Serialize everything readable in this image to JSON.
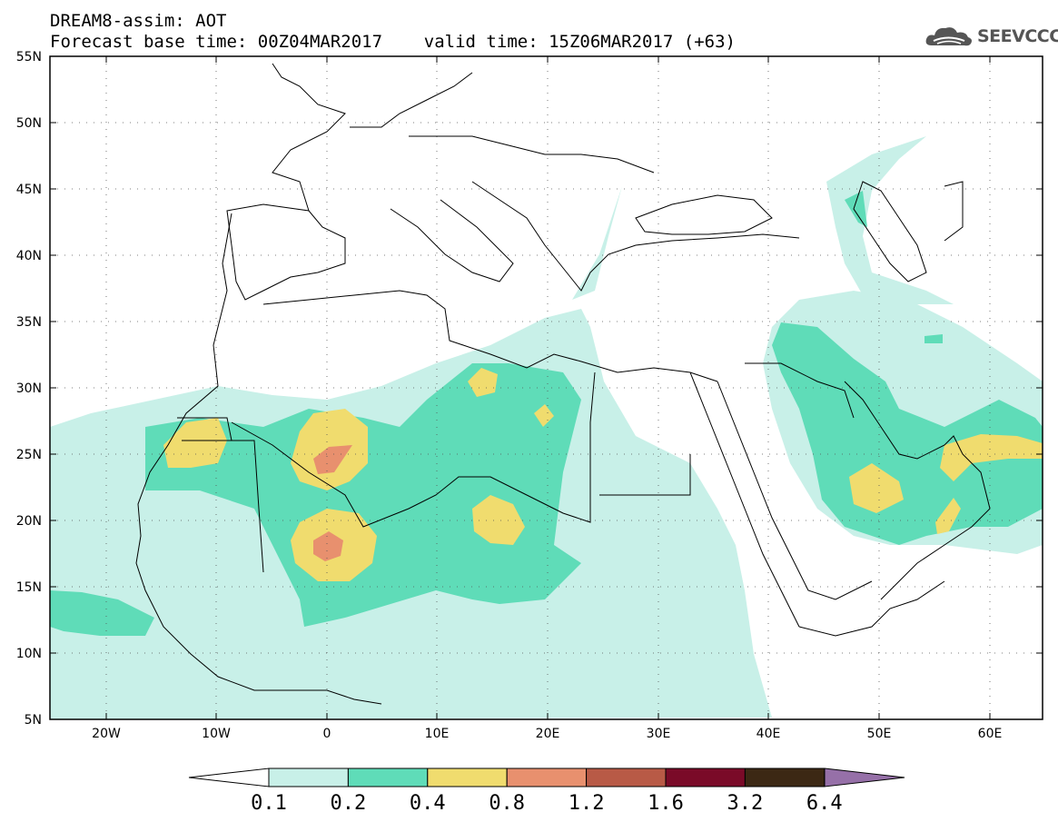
{
  "header": {
    "line1": "DREAM8-assim: AOT",
    "line2": "Forecast base time: 00Z04MAR2017    valid time: 15Z06MAR2017 (+63)"
  },
  "logo": {
    "text": "SEEVCCC",
    "icon": "cloud-icon"
  },
  "map": {
    "lat_labels": [
      "55N",
      "50N",
      "45N",
      "40N",
      "35N",
      "30N",
      "25N",
      "20N",
      "15N",
      "10N",
      "5N"
    ],
    "lon_labels": [
      "20W",
      "10W",
      "0",
      "10E",
      "20E",
      "30E",
      "40E",
      "50E",
      "60E"
    ],
    "colors": {
      "c01": "#c8f0e8",
      "c02": "#5fdcb8",
      "c04": "#f0dc6e",
      "c08": "#e8906e",
      "c12": "#b85a46",
      "c16": "#7a0a28",
      "c32": "#3c2814",
      "c64": "#9670a8"
    }
  },
  "colorbar": {
    "labels": [
      "0.1",
      "0.2",
      "0.4",
      "0.8",
      "1.2",
      "1.6",
      "3.2",
      "6.4"
    ],
    "colors": [
      "#c8f0e8",
      "#5fdcb8",
      "#f0dc6e",
      "#e8906e",
      "#b85a46",
      "#7a0a28",
      "#3c2814"
    ],
    "over_color": "#9670a8",
    "under_color": "#ffffff"
  }
}
